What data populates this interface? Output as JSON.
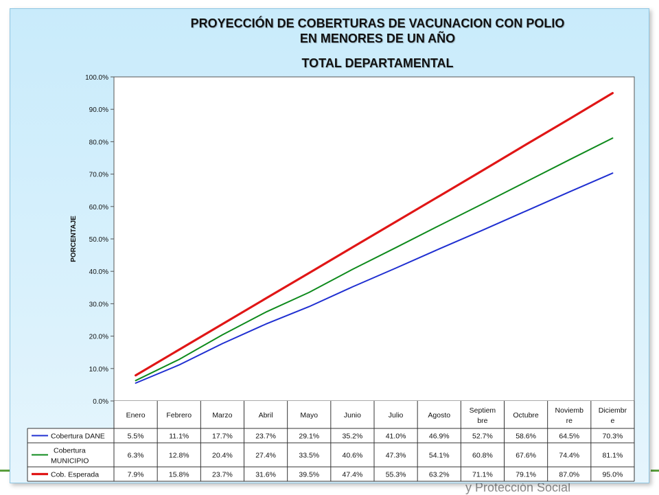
{
  "chart_data": {
    "type": "line",
    "title_lines": [
      "PROYECCIÓN DE COBERTURAS DE VACUNACION CON POLIO",
      "EN MENORES DE UN AÑO",
      "TOTAL DEPARTAMENTAL"
    ],
    "ylabel": "PORCENTAJE",
    "ylim": [
      0,
      100
    ],
    "yticks": [
      "0.0%",
      "10.0%",
      "20.0%",
      "30.0%",
      "40.0%",
      "50.0%",
      "60.0%",
      "70.0%",
      "80.0%",
      "90.0%",
      "100.0%"
    ],
    "categories": [
      [
        "Enero"
      ],
      [
        "Febrero"
      ],
      [
        "Marzo"
      ],
      [
        "Abril"
      ],
      [
        "Mayo"
      ],
      [
        "Junio"
      ],
      [
        "Julio"
      ],
      [
        "Agosto"
      ],
      [
        "Septiem",
        "bre"
      ],
      [
        "Octubre"
      ],
      [
        "Noviemb",
        "re"
      ],
      [
        "Diciembr",
        "e"
      ]
    ],
    "series": [
      {
        "name_lines": [
          "Cobertura DANE"
        ],
        "color": "#1f2fd1",
        "values": [
          5.5,
          11.1,
          17.7,
          23.7,
          29.1,
          35.2,
          41.0,
          46.9,
          52.7,
          58.6,
          64.5,
          70.3
        ],
        "labels": [
          "5.5%",
          "11.1%",
          "17.7%",
          "23.7%",
          "29.1%",
          "35.2%",
          "41.0%",
          "46.9%",
          "52.7%",
          "58.6%",
          "64.5%",
          "70.3%"
        ]
      },
      {
        "name_lines": [
          "Cobertura",
          "MUNICIPIO"
        ],
        "color": "#0e8a1c",
        "values": [
          6.3,
          12.8,
          20.4,
          27.4,
          33.5,
          40.6,
          47.3,
          54.1,
          60.8,
          67.6,
          74.4,
          81.1
        ],
        "labels": [
          "6.3%",
          "12.8%",
          "20.4%",
          "27.4%",
          "33.5%",
          "40.6%",
          "47.3%",
          "54.1%",
          "60.8%",
          "67.6%",
          "74.4%",
          "81.1%"
        ]
      },
      {
        "name_lines": [
          "Cob. Esperada"
        ],
        "color": "#e01616",
        "values": [
          7.9,
          15.8,
          23.7,
          31.6,
          39.5,
          47.4,
          55.3,
          63.2,
          71.1,
          79.1,
          87.0,
          95.0
        ],
        "labels": [
          "7.9%",
          "15.8%",
          "23.7%",
          "31.6%",
          "39.5%",
          "47.4%",
          "55.3%",
          "63.2%",
          "71.1%",
          "79.1%",
          "87.0%",
          "95.0%"
        ]
      }
    ],
    "grid": false,
    "legend": "data-table"
  },
  "footer_text": "y Protección Social",
  "colors": {
    "panel": "#c9ebfb",
    "accent_green": "#5a9e3c"
  }
}
